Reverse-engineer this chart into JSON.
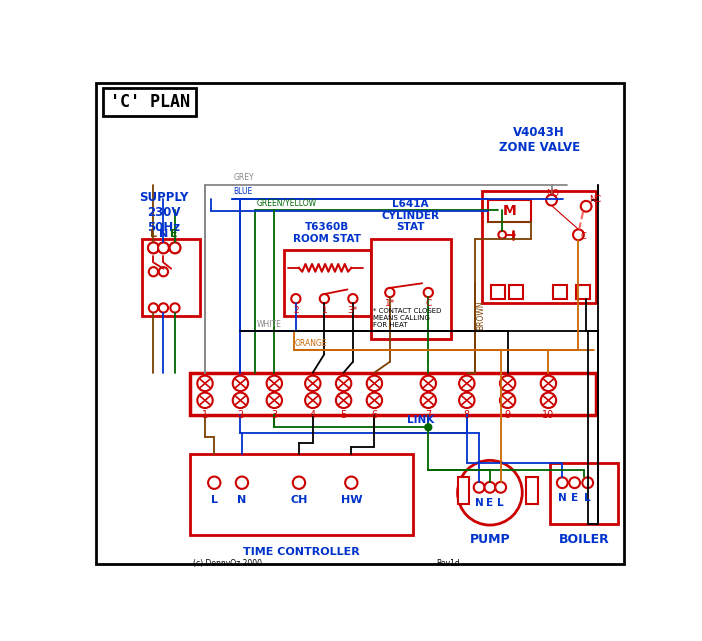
{
  "title": "'C' PLAN",
  "bg_color": "#ffffff",
  "red": "#cc0000",
  "blue": "#0033cc",
  "green": "#006600",
  "grey": "#888888",
  "brown": "#7B3F00",
  "orange": "#CC6600",
  "black": "#000000",
  "supply_text": "SUPPLY\n230V\n50Hz",
  "zone_valve_title": "V4043H\nZONE VALVE",
  "room_stat_title": "T6360B\nROOM STAT",
  "cyl_stat_title": "L641A\nCYLINDER\nSTAT",
  "time_ctrl_title": "TIME CONTROLLER",
  "pump_title": "PUMP",
  "boiler_title": "BOILER",
  "link_text": "LINK",
  "copyright": "(c) DennvOz 2000",
  "rev": "Rev1d"
}
